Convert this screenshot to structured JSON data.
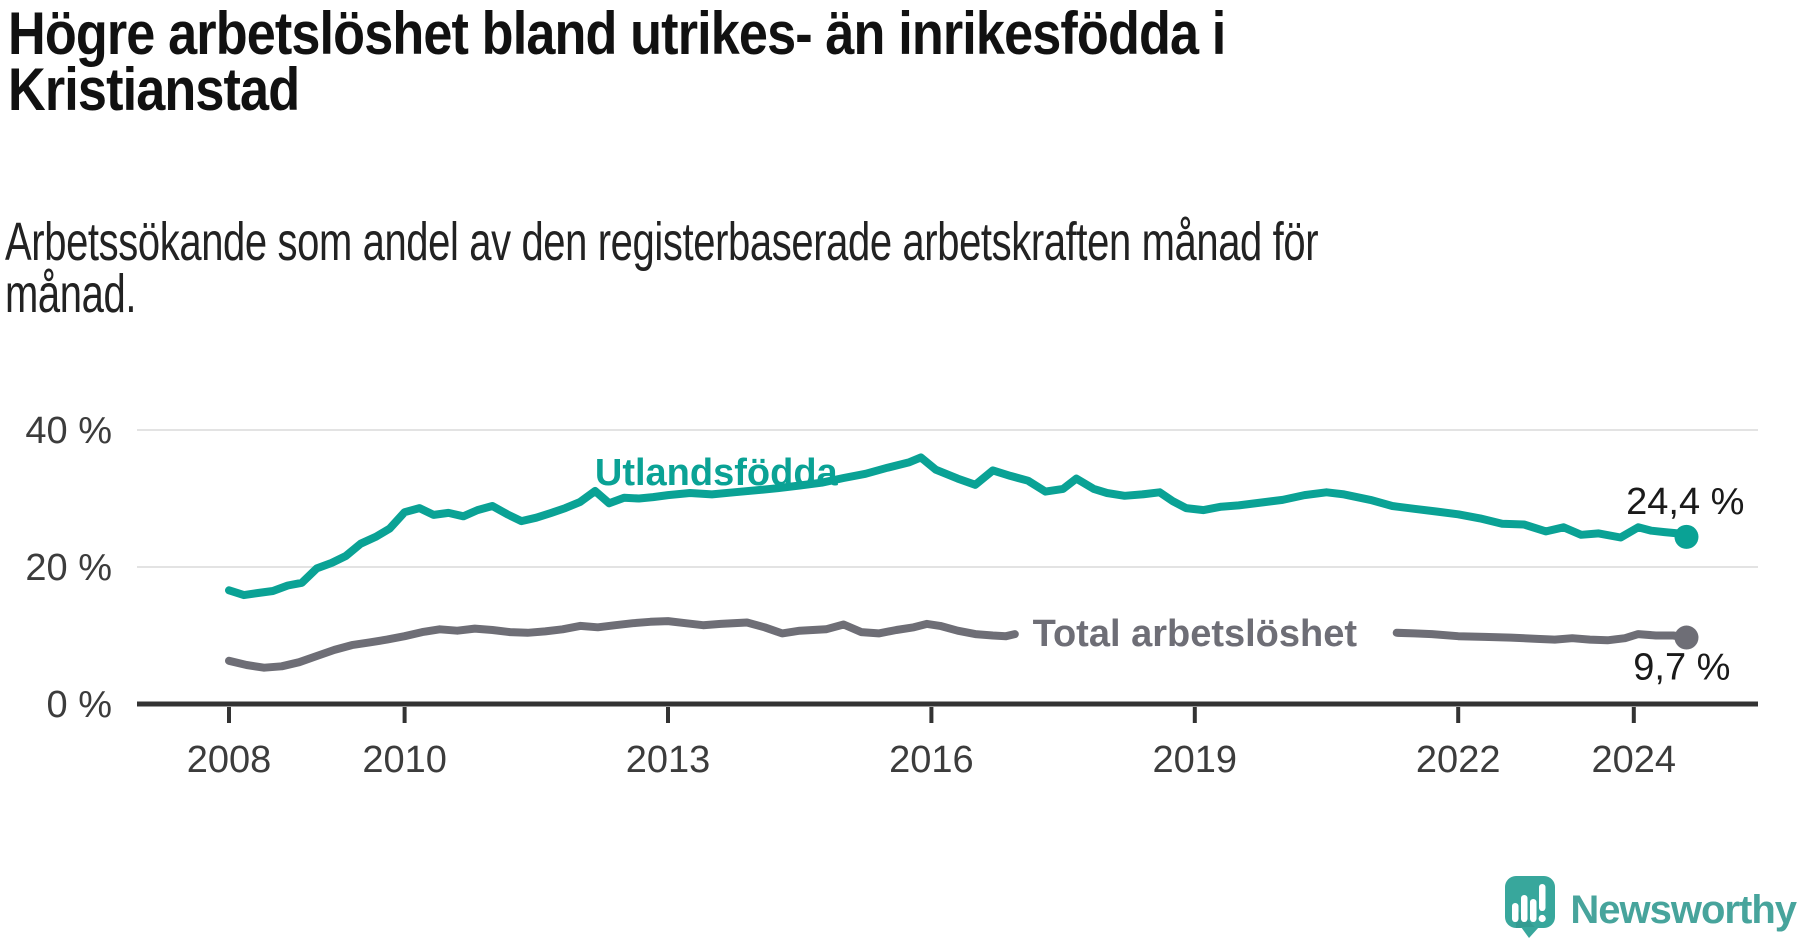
{
  "header": {
    "title_lines": [
      "Högre arbetslöshet bland utrikes- än inrikesfödda i",
      "Kristianstad"
    ],
    "subtitle_lines": [
      "Arbetssökande som andel av den registerbaserade arbetskraften månad för",
      "månad."
    ]
  },
  "footer": {
    "brand": "Newsworthy",
    "logo_icon": "speech-bubble-bar-chart-icon",
    "brand_color": "#47a49c",
    "logo_fill": "#38a79c"
  },
  "chart_data": {
    "type": "line",
    "unit": "%",
    "grid": "horizontal-only",
    "colors": {
      "grid": "#e3e3e3",
      "axis": "#333333",
      "tick_text": "#3c3c3c"
    },
    "x_axis": {
      "ticks": [
        2008,
        2010,
        2013,
        2016,
        2019,
        2022,
        2024
      ]
    },
    "y_axis": {
      "ticks": [
        {
          "value": 0,
          "label": "0 %"
        },
        {
          "value": 20,
          "label": "20 %"
        },
        {
          "value": 40,
          "label": "40 %"
        }
      ]
    },
    "xlim": [
      2007.0,
      2025.5
    ],
    "ylim": [
      0,
      40
    ],
    "series": [
      {
        "name": "Utlandsfödda",
        "color": "#0aa295",
        "end_value": 24.4,
        "end_label": "24,4 %",
        "end_label_position": "above",
        "label_at": {
          "x": 2013.55,
          "y": 33.9
        },
        "points": [
          [
            2008.0,
            16.6
          ],
          [
            2008.17,
            15.9
          ],
          [
            2008.33,
            16.2
          ],
          [
            2008.5,
            16.5
          ],
          [
            2008.67,
            17.3
          ],
          [
            2008.83,
            17.7
          ],
          [
            2009.0,
            19.8
          ],
          [
            2009.17,
            20.6
          ],
          [
            2009.33,
            21.6
          ],
          [
            2009.5,
            23.4
          ],
          [
            2009.67,
            24.4
          ],
          [
            2009.83,
            25.6
          ],
          [
            2010.0,
            28.0
          ],
          [
            2010.17,
            28.6
          ],
          [
            2010.33,
            27.6
          ],
          [
            2010.5,
            27.9
          ],
          [
            2010.67,
            27.4
          ],
          [
            2010.83,
            28.3
          ],
          [
            2011.0,
            28.9
          ],
          [
            2011.17,
            27.7
          ],
          [
            2011.33,
            26.7
          ],
          [
            2011.5,
            27.2
          ],
          [
            2011.67,
            27.9
          ],
          [
            2011.83,
            28.6
          ],
          [
            2012.0,
            29.5
          ],
          [
            2012.17,
            31.1
          ],
          [
            2012.33,
            29.3
          ],
          [
            2012.5,
            30.1
          ],
          [
            2012.67,
            30.0
          ],
          [
            2012.83,
            30.2
          ],
          [
            2013.0,
            30.5
          ],
          [
            2013.25,
            30.8
          ],
          [
            2013.5,
            30.6
          ],
          [
            2013.75,
            30.9
          ],
          [
            2014.0,
            31.2
          ],
          [
            2014.25,
            31.5
          ],
          [
            2014.5,
            31.9
          ],
          [
            2014.75,
            32.3
          ],
          [
            2015.0,
            33.0
          ],
          [
            2015.25,
            33.6
          ],
          [
            2015.5,
            34.5
          ],
          [
            2015.75,
            35.3
          ],
          [
            2015.88,
            36.0
          ],
          [
            2016.05,
            34.2
          ],
          [
            2016.3,
            32.9
          ],
          [
            2016.5,
            32.0
          ],
          [
            2016.7,
            34.1
          ],
          [
            2016.9,
            33.3
          ],
          [
            2017.1,
            32.6
          ],
          [
            2017.3,
            31.0
          ],
          [
            2017.5,
            31.4
          ],
          [
            2017.65,
            32.9
          ],
          [
            2017.85,
            31.4
          ],
          [
            2018.0,
            30.8
          ],
          [
            2018.2,
            30.4
          ],
          [
            2018.4,
            30.6
          ],
          [
            2018.6,
            30.9
          ],
          [
            2018.75,
            29.6
          ],
          [
            2018.9,
            28.6
          ],
          [
            2019.1,
            28.3
          ],
          [
            2019.3,
            28.8
          ],
          [
            2019.5,
            29.0
          ],
          [
            2019.75,
            29.4
          ],
          [
            2020.0,
            29.8
          ],
          [
            2020.25,
            30.5
          ],
          [
            2020.5,
            30.9
          ],
          [
            2020.7,
            30.6
          ],
          [
            2021.0,
            29.8
          ],
          [
            2021.25,
            28.9
          ],
          [
            2021.5,
            28.5
          ],
          [
            2021.75,
            28.1
          ],
          [
            2022.0,
            27.7
          ],
          [
            2022.25,
            27.1
          ],
          [
            2022.5,
            26.3
          ],
          [
            2022.75,
            26.2
          ],
          [
            2023.0,
            25.2
          ],
          [
            2023.2,
            25.8
          ],
          [
            2023.4,
            24.7
          ],
          [
            2023.6,
            24.9
          ],
          [
            2023.85,
            24.3
          ],
          [
            2024.05,
            25.8
          ],
          [
            2024.2,
            25.3
          ],
          [
            2024.35,
            25.1
          ],
          [
            2024.5,
            24.9
          ],
          [
            2024.6,
            24.4
          ]
        ]
      },
      {
        "name": "Total arbetslöshet",
        "color": "#6e6e76",
        "end_value": 9.7,
        "end_label": "9,7 %",
        "end_label_position": "below",
        "label_at": {
          "x": 2019.0,
          "y": 10.4
        },
        "label_gap": [
          2016.96,
          2021.28
        ],
        "points": [
          [
            2008.0,
            6.3
          ],
          [
            2008.2,
            5.7
          ],
          [
            2008.4,
            5.3
          ],
          [
            2008.6,
            5.5
          ],
          [
            2008.8,
            6.1
          ],
          [
            2009.0,
            7.0
          ],
          [
            2009.2,
            7.9
          ],
          [
            2009.4,
            8.6
          ],
          [
            2009.6,
            9.0
          ],
          [
            2009.8,
            9.4
          ],
          [
            2010.0,
            9.9
          ],
          [
            2010.2,
            10.5
          ],
          [
            2010.4,
            10.9
          ],
          [
            2010.6,
            10.7
          ],
          [
            2010.8,
            11.0
          ],
          [
            2011.0,
            10.8
          ],
          [
            2011.2,
            10.5
          ],
          [
            2011.4,
            10.4
          ],
          [
            2011.6,
            10.6
          ],
          [
            2011.8,
            10.9
          ],
          [
            2012.0,
            11.4
          ],
          [
            2012.2,
            11.2
          ],
          [
            2012.4,
            11.5
          ],
          [
            2012.6,
            11.8
          ],
          [
            2012.8,
            12.0
          ],
          [
            2013.0,
            12.1
          ],
          [
            2013.2,
            11.8
          ],
          [
            2013.4,
            11.5
          ],
          [
            2013.6,
            11.7
          ],
          [
            2013.9,
            11.9
          ],
          [
            2014.1,
            11.2
          ],
          [
            2014.3,
            10.3
          ],
          [
            2014.5,
            10.7
          ],
          [
            2014.8,
            10.9
          ],
          [
            2015.0,
            11.6
          ],
          [
            2015.2,
            10.5
          ],
          [
            2015.4,
            10.3
          ],
          [
            2015.6,
            10.8
          ],
          [
            2015.8,
            11.2
          ],
          [
            2015.95,
            11.7
          ],
          [
            2016.1,
            11.4
          ],
          [
            2016.3,
            10.7
          ],
          [
            2016.5,
            10.2
          ],
          [
            2016.7,
            10.0
          ],
          [
            2016.85,
            9.9
          ],
          [
            2016.95,
            10.2
          ],
          [
            2021.3,
            10.4
          ],
          [
            2021.5,
            10.3
          ],
          [
            2021.7,
            10.2
          ],
          [
            2022.0,
            9.9
          ],
          [
            2022.3,
            9.8
          ],
          [
            2022.6,
            9.7
          ],
          [
            2022.9,
            9.5
          ],
          [
            2023.1,
            9.4
          ],
          [
            2023.3,
            9.6
          ],
          [
            2023.5,
            9.4
          ],
          [
            2023.7,
            9.3
          ],
          [
            2023.9,
            9.6
          ],
          [
            2024.05,
            10.2
          ],
          [
            2024.25,
            10.0
          ],
          [
            2024.45,
            10.0
          ],
          [
            2024.6,
            9.7
          ]
        ]
      }
    ]
  }
}
